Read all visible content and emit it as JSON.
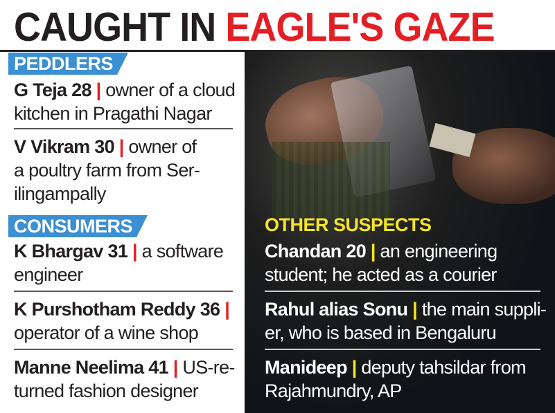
{
  "title": {
    "part1": "CAUGHT IN ",
    "part2": "EAGLE'S GAZE"
  },
  "colors": {
    "accent_red": "#e31e24",
    "section_blue": "#3b8fd3",
    "highlight_yellow": "#f5e625"
  },
  "peddlers": {
    "label": "PEDDLERS",
    "items": [
      {
        "name": "G Teja 28",
        "sep": "|",
        "line1": "owner of a cloud",
        "line2": "kitchen in Pragathi Nagar"
      },
      {
        "name": "V Vikram 30",
        "sep": "|",
        "line1": "owner of",
        "line2": "a poultry farm from Ser-",
        "line3": "ilingampally"
      }
    ]
  },
  "consumers": {
    "label": "CONSUMERS",
    "items": [
      {
        "name": "K Bhargav 31",
        "sep": "|",
        "line1": "a software",
        "line2": "engineer"
      },
      {
        "name": "K Purshotham Reddy 36",
        "sep": "|",
        "line1": "",
        "line2": "operator of a wine shop"
      },
      {
        "name": "Manne Neelima 41",
        "sep": "|",
        "line1": "US-re-",
        "line2": "turned fashion designer"
      }
    ]
  },
  "other_suspects": {
    "label": "OTHER SUSPECTS",
    "items": [
      {
        "name": "Chandan 20",
        "sep": "|",
        "line1": "an engineering",
        "line2": "student; he acted as a courier"
      },
      {
        "name": "Rahul alias Sonu",
        "sep": "|",
        "line1": "the main suppli-",
        "line2": "er, who is based in Bengaluru"
      },
      {
        "name": "Manideep",
        "sep": "|",
        "line1": "deputy tahsildar from",
        "line2": "Rajahmundry, AP"
      }
    ]
  }
}
